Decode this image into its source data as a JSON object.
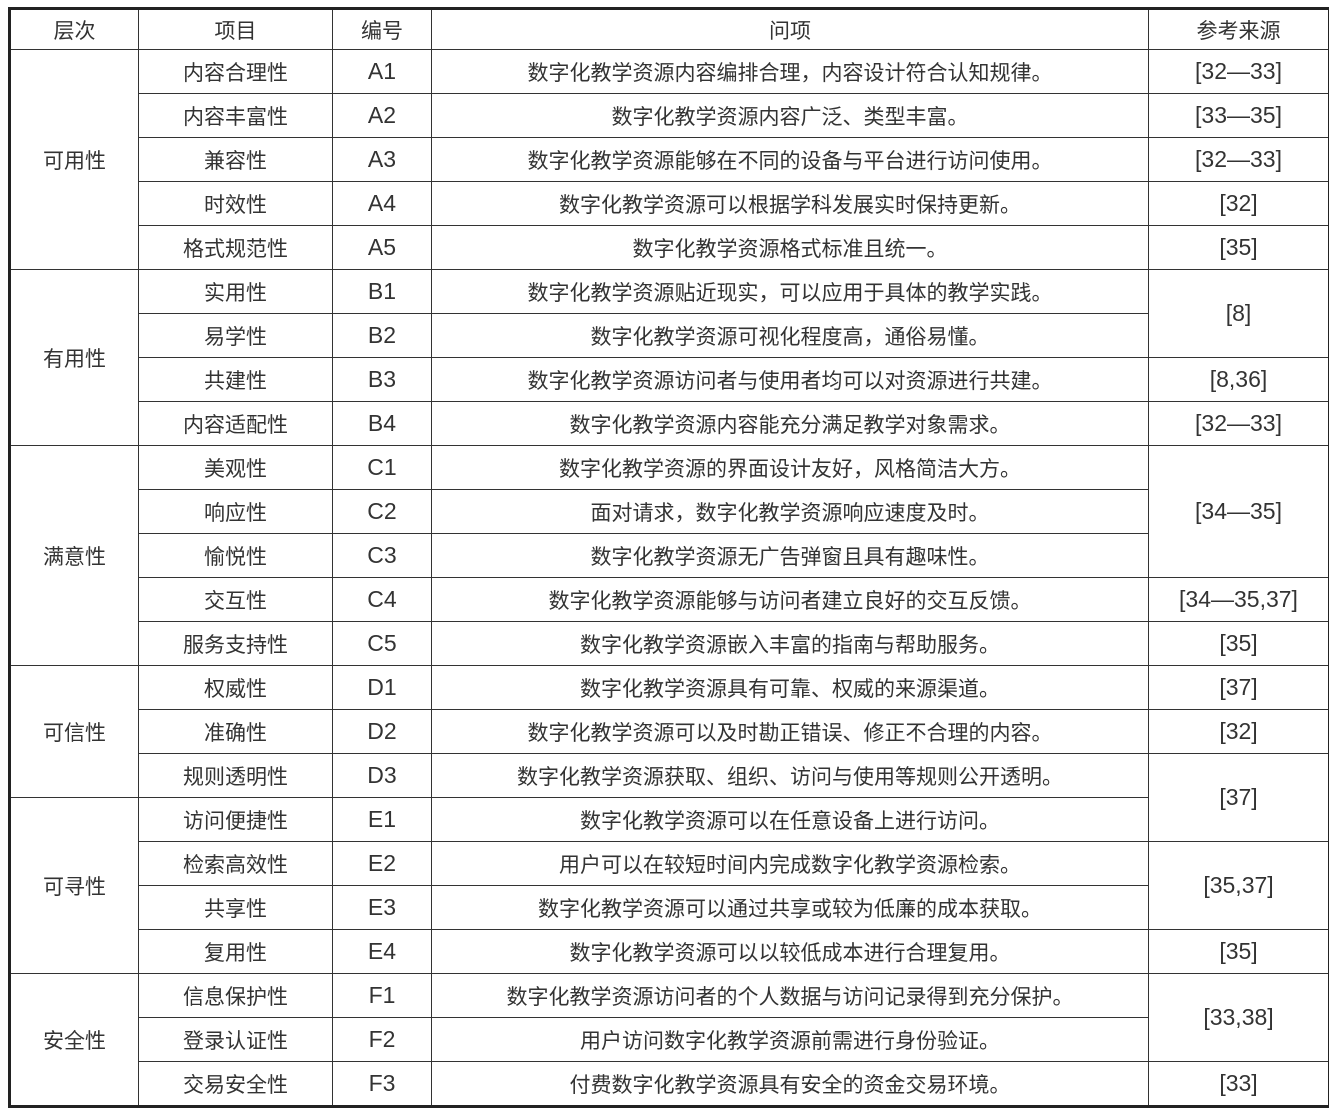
{
  "headers": [
    "层次",
    "项目",
    "编号",
    "问项",
    "参考来源"
  ],
  "groups": [
    {
      "name": "可用性",
      "rows": [
        {
          "item": "内容合理性",
          "code": "A1",
          "question": "数字化教学资源内容编排合理，内容设计符合认知规律。"
        },
        {
          "item": "内容丰富性",
          "code": "A2",
          "question": "数字化教学资源内容广泛、类型丰富。"
        },
        {
          "item": "兼容性",
          "code": "A3",
          "question": "数字化教学资源能够在不同的设备与平台进行访问使用。"
        },
        {
          "item": "时效性",
          "code": "A4",
          "question": "数字化教学资源可以根据学科发展实时保持更新。"
        },
        {
          "item": "格式规范性",
          "code": "A5",
          "question": "数字化教学资源格式标准且统一。"
        }
      ]
    },
    {
      "name": "有用性",
      "rows": [
        {
          "item": "实用性",
          "code": "B1",
          "question": "数字化教学资源贴近现实，可以应用于具体的教学实践。"
        },
        {
          "item": "易学性",
          "code": "B2",
          "question": "数字化教学资源可视化程度高，通俗易懂。"
        },
        {
          "item": "共建性",
          "code": "B3",
          "question": "数字化教学资源访问者与使用者均可以对资源进行共建。"
        },
        {
          "item": "内容适配性",
          "code": "B4",
          "question": "数字化教学资源内容能充分满足教学对象需求。"
        }
      ]
    },
    {
      "name": "满意性",
      "rows": [
        {
          "item": "美观性",
          "code": "C1",
          "question": "数字化教学资源的界面设计友好，风格简洁大方。"
        },
        {
          "item": "响应性",
          "code": "C2",
          "question": "面对请求，数字化教学资源响应速度及时。"
        },
        {
          "item": "愉悦性",
          "code": "C3",
          "question": "数字化教学资源无广告弹窗且具有趣味性。"
        },
        {
          "item": "交互性",
          "code": "C4",
          "question": "数字化教学资源能够与访问者建立良好的交互反馈。"
        },
        {
          "item": "服务支持性",
          "code": "C5",
          "question": "数字化教学资源嵌入丰富的指南与帮助服务。"
        }
      ]
    },
    {
      "name": "可信性",
      "rows": [
        {
          "item": "权威性",
          "code": "D1",
          "question": "数字化教学资源具有可靠、权威的来源渠道。"
        },
        {
          "item": "准确性",
          "code": "D2",
          "question": "数字化教学资源可以及时勘正错误、修正不合理的内容。"
        },
        {
          "item": "规则透明性",
          "code": "D3",
          "question": "数字化教学资源获取、组织、访问与使用等规则公开透明。"
        }
      ]
    },
    {
      "name": "可寻性",
      "rows": [
        {
          "item": "访问便捷性",
          "code": "E1",
          "question": "数字化教学资源可以在任意设备上进行访问。"
        },
        {
          "item": "检索高效性",
          "code": "E2",
          "question": "用户可以在较短时间内完成数字化教学资源检索。"
        },
        {
          "item": "共享性",
          "code": "E3",
          "question": "数字化教学资源可以通过共享或较为低廉的成本获取。"
        },
        {
          "item": "复用性",
          "code": "E4",
          "question": "数字化教学资源可以以较低成本进行合理复用。"
        }
      ]
    },
    {
      "name": "安全性",
      "rows": [
        {
          "item": "信息保护性",
          "code": "F1",
          "question": "数字化教学资源访问者的个人数据与访问记录得到充分保护。"
        },
        {
          "item": "登录认证性",
          "code": "F2",
          "question": "用户访问数字化教学资源前需进行身份验证。"
        },
        {
          "item": "交易安全性",
          "code": "F3",
          "question": "付费数字化教学资源具有安全的资金交易环境。"
        }
      ]
    }
  ],
  "references": [
    {
      "text": "[32—33]",
      "codes": [
        "A1"
      ]
    },
    {
      "text": "[33—35]",
      "codes": [
        "A2"
      ]
    },
    {
      "text": "[32—33]",
      "codes": [
        "A3"
      ]
    },
    {
      "text": "[32]",
      "codes": [
        "A4"
      ]
    },
    {
      "text": "[35]",
      "codes": [
        "A5"
      ]
    },
    {
      "text": "[8]",
      "codes": [
        "B1",
        "B2"
      ]
    },
    {
      "text": "[8,36]",
      "codes": [
        "B3"
      ]
    },
    {
      "text": "[32—33]",
      "codes": [
        "B4"
      ]
    },
    {
      "text": "[34—35]",
      "codes": [
        "C1",
        "C2",
        "C3"
      ]
    },
    {
      "text": "[34—35,37]",
      "codes": [
        "C4"
      ]
    },
    {
      "text": "[35]",
      "codes": [
        "C5"
      ]
    },
    {
      "text": "[37]",
      "codes": [
        "D1"
      ]
    },
    {
      "text": "[32]",
      "codes": [
        "D2"
      ]
    },
    {
      "text": "[37]",
      "codes": [
        "D3",
        "E1"
      ]
    },
    {
      "text": "[35,37]",
      "codes": [
        "E2",
        "E3"
      ]
    },
    {
      "text": "[35]",
      "codes": [
        "E4"
      ]
    },
    {
      "text": "[33,38]",
      "codes": [
        "F1",
        "F2"
      ]
    },
    {
      "text": "[33]",
      "codes": [
        "F3"
      ]
    }
  ]
}
